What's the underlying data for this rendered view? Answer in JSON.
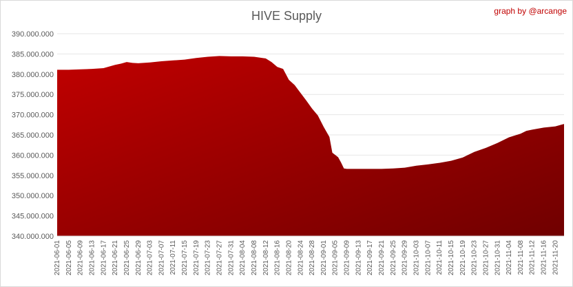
{
  "chart_data": {
    "type": "area",
    "title": "HIVE Supply",
    "credit": "graph by @arcange",
    "xlabel": "",
    "ylabel": "",
    "ylim": [
      340000000,
      390000000
    ],
    "grid": true,
    "legend": "none",
    "fill_color_top": "#c00000",
    "fill_color_bottom": "#700000",
    "y_ticks": [
      "340.000.000",
      "345.000.000",
      "350.000.000",
      "355.000.000",
      "360.000.000",
      "365.000.000",
      "370.000.000",
      "375.000.000",
      "380.000.000",
      "385.000.000",
      "390.000.000"
    ],
    "x_ticks": [
      "2021-06-01",
      "2021-06-05",
      "2021-06-09",
      "2021-06-13",
      "2021-06-17",
      "2021-06-21",
      "2021-06-25",
      "2021-06-29",
      "2021-07-03",
      "2021-07-07",
      "2021-07-11",
      "2021-07-15",
      "2021-07-19",
      "2021-07-23",
      "2021-07-27",
      "2021-07-31",
      "2021-08-04",
      "2021-08-08",
      "2021-08-12",
      "2021-08-16",
      "2021-08-20",
      "2021-08-24",
      "2021-08-28",
      "2021-09-01",
      "2021-09-05",
      "2021-09-09",
      "2021-09-13",
      "2021-09-17",
      "2021-09-21",
      "2021-09-25",
      "2021-09-29",
      "2021-10-03",
      "2021-10-07",
      "2021-10-11",
      "2021-10-15",
      "2021-10-19",
      "2021-10-23",
      "2021-10-27",
      "2021-10-31",
      "2021-11-04",
      "2021-11-08",
      "2021-11-12",
      "2021-11-16",
      "2021-11-20"
    ],
    "series": [
      {
        "x": [
          "2021-06-01",
          "2021-06-05",
          "2021-06-09",
          "2021-06-13",
          "2021-06-17",
          "2021-06-19",
          "2021-06-21",
          "2021-06-23",
          "2021-06-25",
          "2021-06-27",
          "2021-06-29",
          "2021-07-03",
          "2021-07-07",
          "2021-07-11",
          "2021-07-15",
          "2021-07-19",
          "2021-07-23",
          "2021-07-27",
          "2021-07-31",
          "2021-08-04",
          "2021-08-08",
          "2021-08-12",
          "2021-08-14",
          "2021-08-16",
          "2021-08-18",
          "2021-08-20",
          "2021-08-22",
          "2021-08-24",
          "2021-08-26",
          "2021-08-28",
          "2021-08-30",
          "2021-09-01",
          "2021-09-03",
          "2021-09-04",
          "2021-09-06",
          "2021-09-07",
          "2021-09-08",
          "2021-09-09",
          "2021-09-13",
          "2021-09-17",
          "2021-09-21",
          "2021-09-25",
          "2021-09-29",
          "2021-10-03",
          "2021-10-07",
          "2021-10-11",
          "2021-10-15",
          "2021-10-19",
          "2021-10-23",
          "2021-10-27",
          "2021-10-31",
          "2021-11-02",
          "2021-11-04",
          "2021-11-08",
          "2021-11-10",
          "2021-11-12",
          "2021-11-16",
          "2021-11-20",
          "2021-11-22",
          "2021-11-23"
        ],
        "y": [
          381100000,
          381100000,
          381200000,
          381300000,
          381500000,
          381900000,
          382300000,
          382600000,
          383000000,
          382800000,
          382700000,
          382900000,
          383200000,
          383400000,
          383600000,
          384000000,
          384300000,
          384500000,
          384400000,
          384400000,
          384300000,
          383900000,
          383000000,
          381800000,
          381300000,
          378600000,
          377300000,
          375400000,
          373500000,
          371500000,
          369800000,
          367000000,
          364500000,
          360600000,
          359500000,
          358200000,
          356700000,
          356600000,
          356600000,
          356600000,
          356600000,
          356700000,
          356900000,
          357400000,
          357700000,
          358100000,
          358600000,
          359400000,
          360800000,
          361800000,
          363000000,
          363700000,
          364400000,
          365300000,
          366000000,
          366300000,
          366800000,
          367100000,
          367500000,
          367700000
        ]
      }
    ]
  }
}
